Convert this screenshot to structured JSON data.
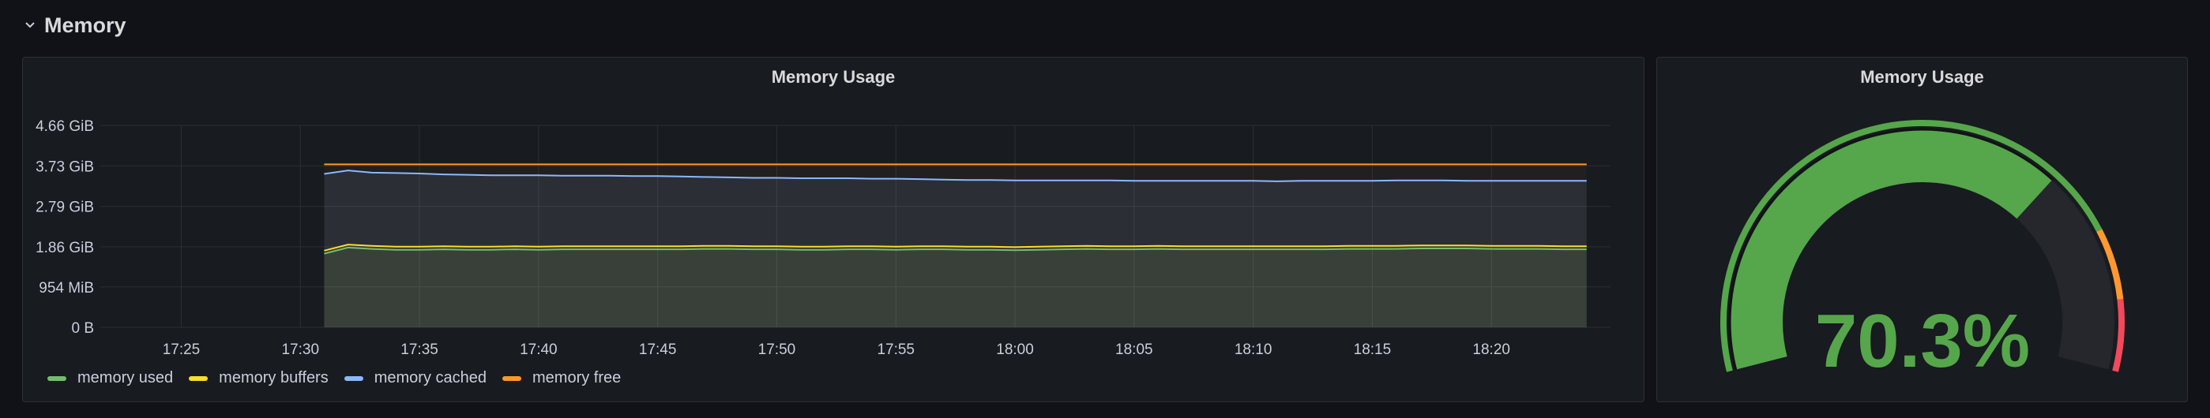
{
  "row": {
    "title": "Memory",
    "collapse_icon": "chevron-down-icon"
  },
  "timeseries": {
    "title": "Memory Usage",
    "legend": [
      {
        "label": "memory used",
        "color": "#73bf69"
      },
      {
        "label": "memory buffers",
        "color": "#fade2a"
      },
      {
        "label": "memory cached",
        "color": "#8ab8ff"
      },
      {
        "label": "memory free",
        "color": "#ff9830"
      }
    ]
  },
  "gauge": {
    "title": "Memory Usage",
    "value_text": "70.3%",
    "value": 70.3,
    "color": "#56a64b",
    "thresholds": [
      "#56a64b",
      "#ff9830",
      "#f2495c"
    ]
  },
  "chart_data": {
    "type": "area",
    "y_ticks": [
      "4.66 GiB",
      "3.73 GiB",
      "2.79 GiB",
      "1.86 GiB",
      "954 MiB",
      "0 B"
    ],
    "x_ticks": [
      "17:25",
      "17:30",
      "17:35",
      "17:40",
      "17:45",
      "17:50",
      "17:55",
      "18:00",
      "18:05",
      "18:10",
      "18:15",
      "18:20"
    ],
    "x_minutes": [
      31.0,
      32.0,
      33.0,
      34.0,
      35.0,
      36.0,
      37.0,
      38.0,
      39.0,
      40.0,
      41.0,
      42.0,
      43.0,
      44.0,
      45.0,
      46.0,
      47.0,
      48.0,
      49.0,
      50.0,
      51.0,
      52.0,
      53.0,
      54.0,
      55.0,
      56.0,
      57.0,
      58.0,
      59.0,
      60.0,
      61.0,
      62.0,
      63.0,
      64.0,
      65.0,
      66.0,
      67.0,
      68.0,
      69.0,
      70.0,
      71.0,
      72.0,
      73.0,
      74.0,
      75.0,
      76.0,
      77.0,
      78.0,
      79.0,
      80.0,
      81.0,
      82.0,
      83.0,
      84.0
    ],
    "ylim_gib": [
      0,
      4.66
    ],
    "series": [
      {
        "name": "memory used",
        "color": "#73bf69",
        "values": [
          1.7,
          1.84,
          1.81,
          1.79,
          1.79,
          1.8,
          1.79,
          1.79,
          1.8,
          1.79,
          1.8,
          1.8,
          1.8,
          1.8,
          1.8,
          1.8,
          1.81,
          1.81,
          1.8,
          1.8,
          1.79,
          1.79,
          1.8,
          1.8,
          1.79,
          1.8,
          1.8,
          1.79,
          1.79,
          1.78,
          1.79,
          1.8,
          1.81,
          1.8,
          1.8,
          1.81,
          1.8,
          1.8,
          1.8,
          1.8,
          1.8,
          1.8,
          1.8,
          1.81,
          1.81,
          1.81,
          1.82,
          1.82,
          1.82,
          1.81,
          1.81,
          1.81,
          1.8,
          1.8
        ]
      },
      {
        "name": "memory buffers",
        "color": "#fade2a",
        "values": [
          1.77,
          1.91,
          1.88,
          1.86,
          1.86,
          1.87,
          1.86,
          1.86,
          1.87,
          1.86,
          1.87,
          1.87,
          1.87,
          1.87,
          1.87,
          1.87,
          1.88,
          1.88,
          1.87,
          1.87,
          1.86,
          1.86,
          1.87,
          1.87,
          1.86,
          1.87,
          1.87,
          1.86,
          1.86,
          1.85,
          1.86,
          1.87,
          1.88,
          1.87,
          1.87,
          1.88,
          1.87,
          1.87,
          1.87,
          1.87,
          1.87,
          1.87,
          1.87,
          1.88,
          1.88,
          1.88,
          1.89,
          1.89,
          1.89,
          1.88,
          1.88,
          1.88,
          1.87,
          1.87
        ]
      },
      {
        "name": "memory cached",
        "color": "#8ab8ff",
        "values": [
          3.54,
          3.62,
          3.57,
          3.56,
          3.55,
          3.53,
          3.52,
          3.51,
          3.51,
          3.51,
          3.5,
          3.5,
          3.5,
          3.49,
          3.49,
          3.48,
          3.47,
          3.46,
          3.45,
          3.45,
          3.44,
          3.44,
          3.44,
          3.43,
          3.43,
          3.42,
          3.41,
          3.4,
          3.4,
          3.39,
          3.39,
          3.39,
          3.39,
          3.39,
          3.38,
          3.38,
          3.38,
          3.38,
          3.38,
          3.38,
          3.37,
          3.38,
          3.38,
          3.38,
          3.38,
          3.39,
          3.39,
          3.39,
          3.38,
          3.38,
          3.38,
          3.38,
          3.38,
          3.38
        ]
      },
      {
        "name": "memory free",
        "color": "#ff9830",
        "values": [
          3.76,
          3.76,
          3.76,
          3.76,
          3.76,
          3.76,
          3.76,
          3.76,
          3.76,
          3.76,
          3.76,
          3.76,
          3.76,
          3.76,
          3.76,
          3.76,
          3.76,
          3.76,
          3.76,
          3.76,
          3.76,
          3.76,
          3.76,
          3.76,
          3.76,
          3.76,
          3.76,
          3.76,
          3.76,
          3.76,
          3.76,
          3.76,
          3.76,
          3.76,
          3.76,
          3.76,
          3.76,
          3.76,
          3.76,
          3.76,
          3.76,
          3.76,
          3.76,
          3.76,
          3.76,
          3.76,
          3.76,
          3.76,
          3.76,
          3.76,
          3.76,
          3.76,
          3.76,
          3.76
        ]
      }
    ]
  }
}
